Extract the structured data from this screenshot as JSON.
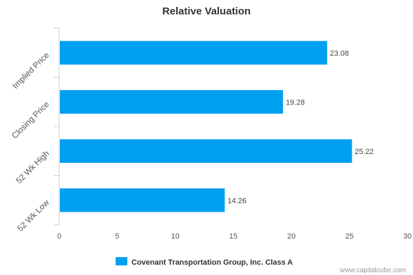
{
  "chart_data": {
    "type": "bar",
    "orientation": "horizontal",
    "title": "Relative Valuation",
    "categories": [
      "Implied Price",
      "Closing Price",
      "52 Wk High",
      "52 Wk Low"
    ],
    "series": [
      {
        "name": "Covenant Transportation Group, Inc. Class A",
        "values": [
          23.08,
          19.28,
          25.22,
          14.26
        ]
      }
    ],
    "data_labels": [
      "23.08",
      "19.28",
      "25.22",
      "14.26"
    ],
    "x_ticks": [
      "0",
      "5",
      "10",
      "15",
      "20",
      "25",
      "30"
    ],
    "xlim": [
      0,
      30
    ],
    "grid": false,
    "legend_position": "bottom",
    "bar_color": "#00a0f0"
  },
  "credit": "www.capitalcube.com"
}
